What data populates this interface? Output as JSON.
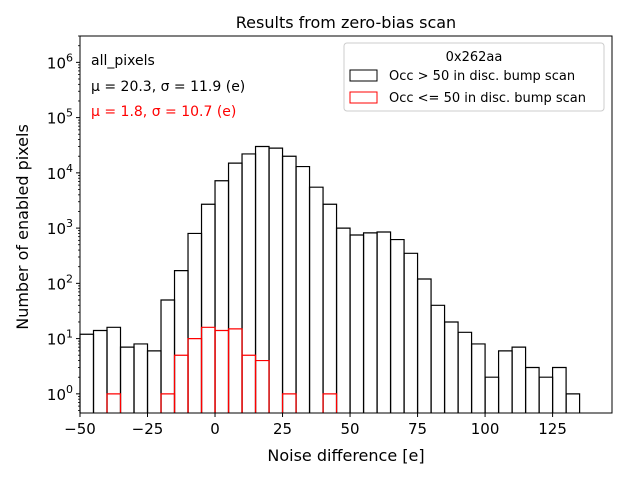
{
  "chart_data": {
    "type": "histogram",
    "title": "Results from zero-bias scan",
    "xlabel": "Noise difference [e]",
    "ylabel": "Number of enabled pixels",
    "xlim": [
      -50,
      147
    ],
    "ylim": [
      0.45,
      3000000
    ],
    "yscale": "log",
    "bin_width": 5,
    "x_ticks": [
      -50,
      -25,
      0,
      25,
      50,
      75,
      100,
      125
    ],
    "x_tick_labels": [
      "−50",
      "−25",
      "0",
      "25",
      "50",
      "75",
      "100",
      "125"
    ],
    "y_ticks": [
      1,
      10,
      100,
      1000,
      10000,
      100000,
      1000000
    ],
    "y_tick_labels": [
      {
        "base": "10",
        "exp": "0"
      },
      {
        "base": "10",
        "exp": "1"
      },
      {
        "base": "10",
        "exp": "2"
      },
      {
        "base": "10",
        "exp": "3"
      },
      {
        "base": "10",
        "exp": "4"
      },
      {
        "base": "10",
        "exp": "5"
      },
      {
        "base": "10",
        "exp": "6"
      }
    ],
    "stats": {
      "label": "all_pixels",
      "series1": "μ = 20.3, σ = 11.9 (e)",
      "series2": "μ = 1.8, σ = 10.7 (e)"
    },
    "legend": {
      "title": "0x262aa",
      "position": "top-right"
    },
    "series": [
      {
        "name": "Occ > 50 in disc. bump scan",
        "color": "#000000",
        "bin_start": -50,
        "counts": [
          12,
          14,
          16,
          7,
          8,
          6,
          50,
          170,
          800,
          2700,
          7200,
          15000,
          22000,
          30000,
          28000,
          20000,
          13000,
          5500,
          2700,
          1000,
          750,
          820,
          850,
          620,
          350,
          120,
          40,
          20,
          13,
          8,
          2,
          6,
          7,
          3,
          2,
          3,
          1
        ]
      },
      {
        "name": "Occ <= 50 in disc. bump scan",
        "color": "#ff0000",
        "bin_start": -50,
        "counts": [
          0,
          0,
          1,
          0,
          0,
          0,
          1,
          5,
          10,
          16,
          14,
          15,
          5,
          4,
          0,
          1,
          0,
          0,
          1,
          0,
          0,
          0,
          0,
          0,
          0,
          0,
          0,
          0,
          0,
          0,
          0,
          0,
          0,
          0,
          0,
          0,
          0
        ]
      }
    ]
  }
}
